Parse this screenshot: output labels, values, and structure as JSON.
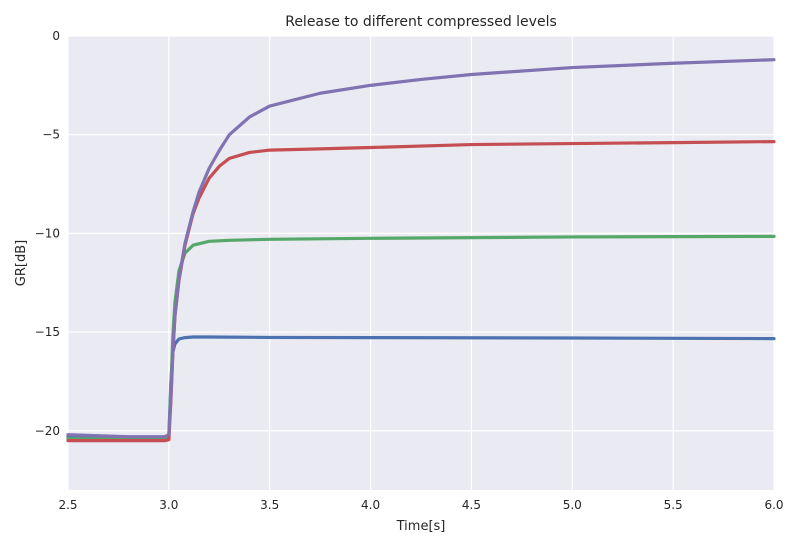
{
  "chart_data": {
    "type": "line",
    "title": "Release to different compressed levels",
    "xlabel": "Time[s]",
    "ylabel": "GR[dB]",
    "xlim": [
      2.5,
      6.0
    ],
    "ylim": [
      -23,
      0
    ],
    "xticks": [
      2.5,
      3.0,
      3.5,
      4.0,
      4.5,
      5.0,
      5.5,
      6.0
    ],
    "yticks": [
      -20,
      -15,
      -10,
      -5,
      0
    ],
    "xtick_labels": [
      "2.5",
      "3.0",
      "3.5",
      "4.0",
      "4.5",
      "5.0",
      "5.5",
      "6.0"
    ],
    "ytick_labels": [
      "−20",
      "−15",
      "−10",
      "−5",
      "0"
    ],
    "grid": true,
    "background": "#eaeaf2",
    "series": [
      {
        "color": "#4c72b0",
        "x": [
          2.5,
          2.8,
          2.98,
          3.0,
          3.01,
          3.02,
          3.03,
          3.05,
          3.08,
          3.12,
          3.2,
          3.5,
          4.0,
          5.0,
          6.0
        ],
        "y": [
          -20.3,
          -20.35,
          -20.4,
          -20.3,
          -17.5,
          -16.0,
          -15.6,
          -15.35,
          -15.28,
          -15.25,
          -15.25,
          -15.27,
          -15.28,
          -15.3,
          -15.33
        ]
      },
      {
        "color": "#55a868",
        "x": [
          2.5,
          2.8,
          2.98,
          3.0,
          3.01,
          3.02,
          3.03,
          3.05,
          3.08,
          3.12,
          3.2,
          3.3,
          3.5,
          4.0,
          5.0,
          6.0
        ],
        "y": [
          -20.4,
          -20.45,
          -20.45,
          -20.4,
          -17.8,
          -15.2,
          -13.5,
          -11.9,
          -11.0,
          -10.6,
          -10.4,
          -10.35,
          -10.3,
          -10.25,
          -10.18,
          -10.15
        ]
      },
      {
        "color": "#c44e52",
        "x": [
          2.5,
          2.8,
          2.98,
          3.0,
          3.01,
          3.02,
          3.03,
          3.05,
          3.08,
          3.12,
          3.15,
          3.2,
          3.25,
          3.3,
          3.4,
          3.5,
          3.75,
          4.0,
          4.5,
          5.0,
          5.5,
          6.0
        ],
        "y": [
          -20.5,
          -20.5,
          -20.5,
          -20.45,
          -18.5,
          -16.0,
          -14.2,
          -12.4,
          -10.6,
          -9.0,
          -8.2,
          -7.2,
          -6.6,
          -6.2,
          -5.9,
          -5.78,
          -5.72,
          -5.65,
          -5.5,
          -5.45,
          -5.4,
          -5.35
        ]
      },
      {
        "color": "#8172b2",
        "x": [
          2.5,
          2.8,
          2.98,
          3.0,
          3.01,
          3.02,
          3.03,
          3.05,
          3.08,
          3.12,
          3.15,
          3.2,
          3.25,
          3.3,
          3.4,
          3.5,
          3.75,
          4.0,
          4.25,
          4.5,
          5.0,
          5.5,
          6.0
        ],
        "y": [
          -20.2,
          -20.3,
          -20.3,
          -20.2,
          -18.3,
          -16.0,
          -14.2,
          -12.3,
          -10.5,
          -8.9,
          -7.9,
          -6.7,
          -5.8,
          -5.0,
          -4.1,
          -3.55,
          -2.9,
          -2.5,
          -2.2,
          -1.95,
          -1.6,
          -1.38,
          -1.2
        ]
      }
    ]
  }
}
